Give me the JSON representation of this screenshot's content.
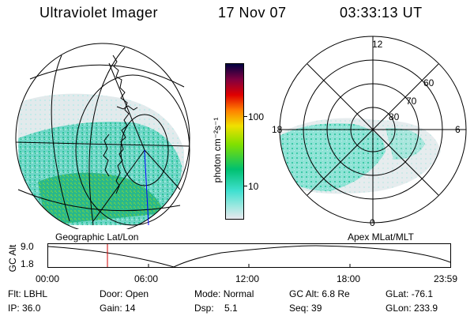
{
  "header": {
    "instrument": "Ultraviolet Imager",
    "date": "17 Nov 07",
    "time": "03:33:13 UT"
  },
  "geo_panel": {
    "label": "Geographic Lat/Lon"
  },
  "apex_panel": {
    "label": "Apex MLat/MLT",
    "mlt_labels": [
      "12",
      "6",
      "0",
      "18"
    ],
    "mlat_labels": [
      "60",
      "70",
      "80"
    ]
  },
  "colorbar": {
    "unit_label": "photon cm⁻²s⁻¹",
    "tick_labels": [
      "100",
      "10"
    ]
  },
  "altitude_strip": {
    "ylabel": "GC Alt",
    "y_ticks": [
      "9.0",
      "1.8"
    ],
    "x_ticks": [
      "00:00",
      "06:00",
      "12:00",
      "18:00",
      "23:59"
    ],
    "marker_time_label": "03:33"
  },
  "info": {
    "row1": [
      {
        "label": "Flt:",
        "value": "LBHL"
      },
      {
        "label": "Door:",
        "value": "Open"
      },
      {
        "label": "Mode:",
        "value": "Normal"
      },
      {
        "label": "GC Alt:",
        "value": "6.8 Re"
      },
      {
        "label": "GLat:",
        "value": "-76.1"
      }
    ],
    "row2": [
      {
        "label": "IP:",
        "value": "36.0"
      },
      {
        "label": "Gain:",
        "value": "14"
      },
      {
        "label": "Dsp:",
        "value": "5.1"
      },
      {
        "label": "Seq:",
        "value": "39"
      },
      {
        "label": "GLon:",
        "value": "233.9"
      }
    ]
  },
  "colors": {
    "marker": "#cc0000",
    "colorbar_stops": [
      "#e8e8ee",
      "#40e0d0",
      "#00c070",
      "#80e000",
      "#f0e000",
      "#ff8000",
      "#e00000",
      "#800040",
      "#000040"
    ]
  }
}
